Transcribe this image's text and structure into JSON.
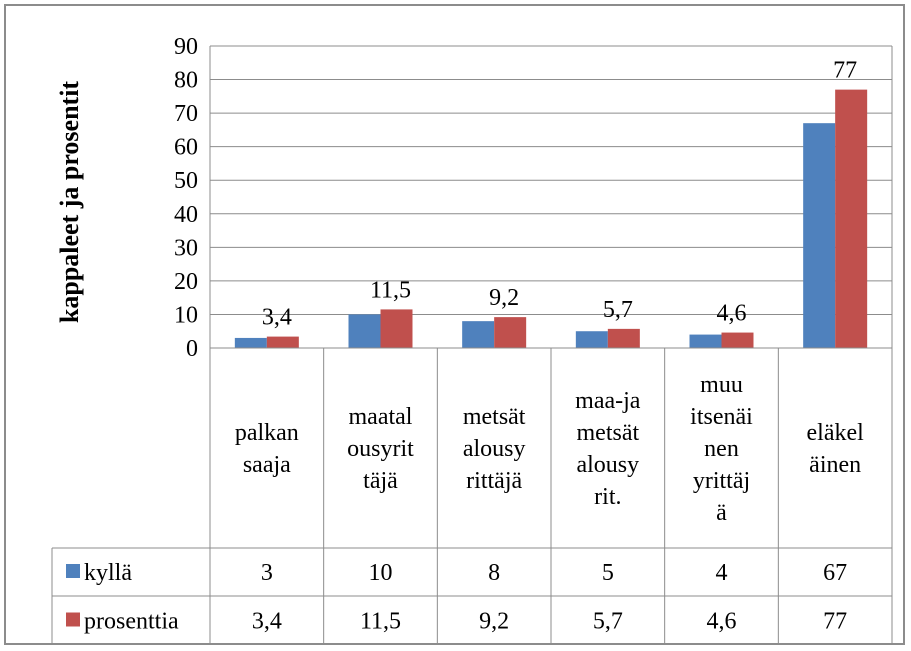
{
  "chart_data": {
    "type": "bar",
    "title": "",
    "ylabel": "kappaleet ja prosentit",
    "xlabel": "",
    "ylim": [
      0,
      90
    ],
    "yticks": [
      0,
      10,
      20,
      30,
      40,
      50,
      60,
      70,
      80,
      90
    ],
    "grid": true,
    "legend": "data-table",
    "categories": [
      [
        "palkan",
        "saaja"
      ],
      [
        "maatal",
        "ousyrit",
        "täjä"
      ],
      [
        "metsät",
        "alousy",
        "rittäjä"
      ],
      [
        "maa-ja",
        "metsät",
        "alousy",
        "rit."
      ],
      [
        "muu",
        "itsenäi",
        "nen",
        "yrittäj",
        "ä"
      ],
      [
        "eläkel",
        "äinen"
      ]
    ],
    "series": [
      {
        "name": "kyllä",
        "color": "#4f81bd",
        "values": [
          3,
          10,
          8,
          5,
          4,
          67
        ],
        "table_values": [
          "3",
          "10",
          "8",
          "5",
          "4",
          "67"
        ],
        "data_labels": null
      },
      {
        "name": "prosenttia",
        "color": "#c0504d",
        "values": [
          3.4,
          11.5,
          9.2,
          5.7,
          4.6,
          77
        ],
        "table_values": [
          "3,4",
          "11,5",
          "9,2",
          "5,7",
          "4,6",
          "77"
        ],
        "data_labels": [
          "3,4",
          "11,5",
          "9,2",
          "5,7",
          "4,6",
          "77"
        ]
      }
    ]
  }
}
